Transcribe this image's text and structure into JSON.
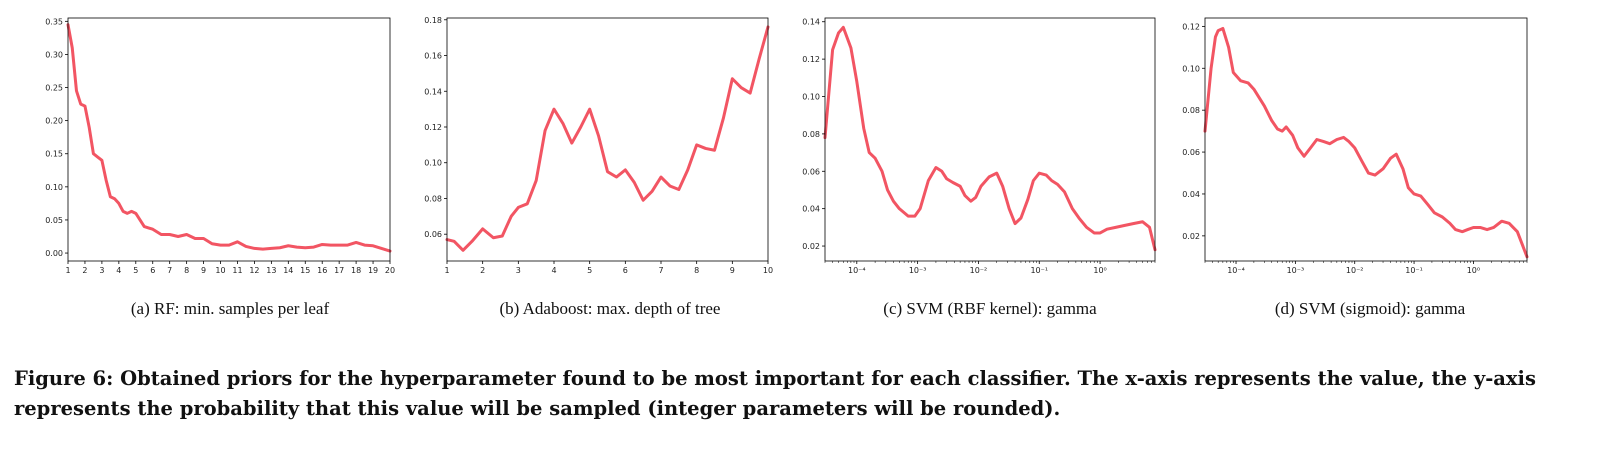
{
  "colors": {
    "line": "#f25563",
    "axis": "#000000"
  },
  "chart_data": [
    {
      "type": "line",
      "caption": "(a)  RF: min. samples per leaf",
      "xlim": [
        1,
        20
      ],
      "ylim": [
        -0.012,
        0.355
      ],
      "xticks": [
        1,
        2,
        3,
        4,
        5,
        6,
        7,
        8,
        9,
        10,
        11,
        12,
        13,
        14,
        15,
        16,
        17,
        18,
        19,
        20
      ],
      "xtick_labels": [
        "1",
        "2",
        "3",
        "4",
        "5",
        "6",
        "7",
        "8",
        "9",
        "10",
        "11",
        "12",
        "13",
        "14",
        "15",
        "16",
        "17",
        "18",
        "19",
        "20"
      ],
      "yticks": [
        0.0,
        0.05,
        0.1,
        0.15,
        0.2,
        0.25,
        0.3,
        0.35
      ],
      "ytick_labels": [
        "0.00",
        "0.05",
        "0.10",
        "0.15",
        "0.20",
        "0.25",
        "0.30",
        "0.35"
      ],
      "x": [
        1,
        1.25,
        1.5,
        1.75,
        2,
        2.25,
        2.5,
        2.75,
        3,
        3.25,
        3.5,
        3.75,
        4,
        4.25,
        4.5,
        4.75,
        5,
        5.25,
        5.5,
        5.75,
        6,
        6.5,
        7,
        7.5,
        8,
        8.5,
        9,
        9.5,
        10,
        10.5,
        11,
        11.5,
        12,
        12.5,
        13,
        13.5,
        14,
        14.5,
        15,
        15.5,
        16,
        16.5,
        17,
        17.5,
        18,
        18.5,
        19,
        19.5,
        20
      ],
      "y": [
        0.345,
        0.31,
        0.245,
        0.225,
        0.222,
        0.19,
        0.15,
        0.145,
        0.14,
        0.11,
        0.085,
        0.082,
        0.075,
        0.063,
        0.06,
        0.063,
        0.06,
        0.05,
        0.04,
        0.038,
        0.036,
        0.028,
        0.028,
        0.025,
        0.028,
        0.022,
        0.022,
        0.014,
        0.012,
        0.012,
        0.017,
        0.01,
        0.007,
        0.006,
        0.007,
        0.008,
        0.011,
        0.009,
        0.008,
        0.009,
        0.013,
        0.012,
        0.012,
        0.012,
        0.016,
        0.012,
        0.011,
        0.007,
        0.003
      ]
    },
    {
      "type": "line",
      "caption": "(b)  Adaboost: max. depth of tree",
      "xlim": [
        1,
        10
      ],
      "ylim": [
        0.045,
        0.181
      ],
      "xticks": [
        1,
        2,
        3,
        4,
        5,
        6,
        7,
        8,
        9,
        10
      ],
      "xtick_labels": [
        "1",
        "2",
        "3",
        "4",
        "5",
        "6",
        "7",
        "8",
        "9",
        "10"
      ],
      "yticks": [
        0.06,
        0.08,
        0.1,
        0.12,
        0.14,
        0.16,
        0.18
      ],
      "ytick_labels": [
        "0.06",
        "0.08",
        "0.10",
        "0.12",
        "0.14",
        "0.16",
        "0.18"
      ],
      "x": [
        1,
        1.2,
        1.45,
        1.7,
        2,
        2.3,
        2.55,
        2.8,
        3,
        3.25,
        3.5,
        3.75,
        4,
        4.25,
        4.5,
        4.75,
        5,
        5.25,
        5.5,
        5.75,
        6,
        6.25,
        6.5,
        6.75,
        7,
        7.25,
        7.5,
        7.75,
        8,
        8.25,
        8.5,
        8.75,
        9,
        9.25,
        9.5,
        9.75,
        10
      ],
      "y": [
        0.057,
        0.056,
        0.051,
        0.056,
        0.063,
        0.058,
        0.059,
        0.07,
        0.075,
        0.077,
        0.09,
        0.118,
        0.13,
        0.122,
        0.111,
        0.12,
        0.13,
        0.115,
        0.095,
        0.092,
        0.096,
        0.089,
        0.079,
        0.084,
        0.092,
        0.087,
        0.085,
        0.096,
        0.11,
        0.108,
        0.107,
        0.125,
        0.147,
        0.142,
        0.139,
        0.158,
        0.176
      ]
    },
    {
      "type": "line",
      "caption": "(c)  SVM (RBF kernel): gamma",
      "xscale": "log",
      "xlim": [
        3e-05,
        8
      ],
      "ylim": [
        0.012,
        0.142
      ],
      "xticks": [
        0.0001,
        0.001,
        0.01,
        0.1,
        1
      ],
      "xtick_labels": [
        "10⁻⁴",
        "10⁻³",
        "10⁻²",
        "10⁻¹",
        "10⁰"
      ],
      "yticks": [
        0.02,
        0.04,
        0.06,
        0.08,
        0.1,
        0.12,
        0.14
      ],
      "ytick_labels": [
        "0.02",
        "0.04",
        "0.06",
        "0.08",
        "0.10",
        "0.12",
        "0.14"
      ],
      "x": [
        3e-05,
        4e-05,
        5e-05,
        6e-05,
        8e-05,
        0.0001,
        0.00013,
        0.00016,
        0.0002,
        0.00026,
        0.00032,
        0.0004,
        0.0005,
        0.0007,
        0.0009,
        0.0011,
        0.0015,
        0.002,
        0.0025,
        0.003,
        0.0038,
        0.005,
        0.006,
        0.0075,
        0.009,
        0.011,
        0.015,
        0.02,
        0.025,
        0.032,
        0.04,
        0.05,
        0.065,
        0.08,
        0.1,
        0.13,
        0.16,
        0.2,
        0.26,
        0.35,
        0.45,
        0.6,
        0.8,
        1.0,
        1.3,
        1.8,
        2.5,
        3.5,
        5,
        6.5,
        8
      ],
      "y": [
        0.078,
        0.125,
        0.134,
        0.137,
        0.126,
        0.108,
        0.083,
        0.07,
        0.067,
        0.06,
        0.05,
        0.044,
        0.04,
        0.036,
        0.036,
        0.04,
        0.055,
        0.062,
        0.06,
        0.056,
        0.054,
        0.052,
        0.047,
        0.044,
        0.046,
        0.052,
        0.057,
        0.059,
        0.052,
        0.04,
        0.032,
        0.035,
        0.045,
        0.055,
        0.059,
        0.058,
        0.055,
        0.053,
        0.049,
        0.04,
        0.035,
        0.03,
        0.027,
        0.027,
        0.029,
        0.03,
        0.031,
        0.032,
        0.033,
        0.03,
        0.018
      ]
    },
    {
      "type": "line",
      "caption": "(d)  SVM (sigmoid): gamma",
      "xscale": "log",
      "xlim": [
        3e-05,
        8
      ],
      "ylim": [
        0.008,
        0.124
      ],
      "xticks": [
        0.0001,
        0.001,
        0.01,
        0.1,
        1
      ],
      "xtick_labels": [
        "10⁻⁴",
        "10⁻³",
        "10⁻²",
        "10⁻¹",
        "10⁰"
      ],
      "yticks": [
        0.02,
        0.04,
        0.06,
        0.08,
        0.1,
        0.12
      ],
      "ytick_labels": [
        "0.02",
        "0.04",
        "0.06",
        "0.08",
        "0.10",
        "0.12"
      ],
      "x": [
        3e-05,
        3.8e-05,
        4.5e-05,
        5e-05,
        6e-05,
        7.5e-05,
        9e-05,
        0.00012,
        0.00016,
        0.0002,
        0.0003,
        0.0004,
        0.0005,
        0.0006,
        0.0007,
        0.0009,
        0.0011,
        0.0014,
        0.0018,
        0.0023,
        0.003,
        0.0038,
        0.005,
        0.0065,
        0.008,
        0.01,
        0.013,
        0.017,
        0.022,
        0.03,
        0.04,
        0.05,
        0.065,
        0.08,
        0.1,
        0.13,
        0.17,
        0.22,
        0.3,
        0.4,
        0.5,
        0.65,
        0.8,
        1.0,
        1.3,
        1.7,
        2.2,
        3,
        4,
        5.5,
        8
      ],
      "y": [
        0.07,
        0.1,
        0.115,
        0.118,
        0.119,
        0.11,
        0.098,
        0.094,
        0.093,
        0.09,
        0.082,
        0.075,
        0.071,
        0.07,
        0.072,
        0.068,
        0.062,
        0.058,
        0.062,
        0.066,
        0.065,
        0.064,
        0.066,
        0.067,
        0.065,
        0.062,
        0.056,
        0.05,
        0.049,
        0.052,
        0.057,
        0.059,
        0.052,
        0.043,
        0.04,
        0.039,
        0.035,
        0.031,
        0.029,
        0.026,
        0.023,
        0.022,
        0.023,
        0.024,
        0.024,
        0.023,
        0.024,
        0.027,
        0.026,
        0.022,
        0.01
      ]
    }
  ],
  "figure_caption": "Figure 6: Obtained priors for the hyperparameter found to be most important for each classifier. The x-axis represents the value, the y-axis represents the probability that this value will be sampled (integer parameters will be rounded)."
}
